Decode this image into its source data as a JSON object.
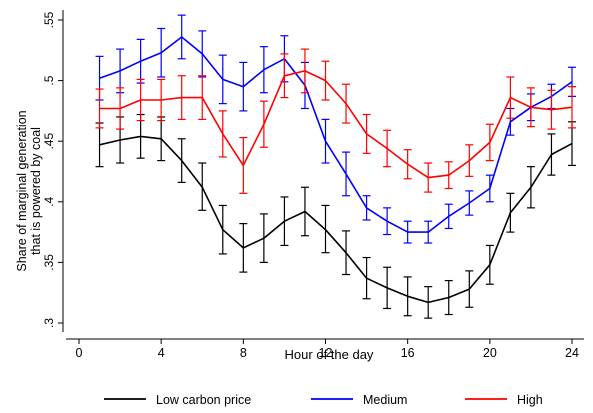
{
  "chart_data": {
    "type": "line",
    "title": "",
    "xlabel": "Hour of the day",
    "ylabel_lines": [
      "Share of marginal generation",
      "that is powered by coal"
    ],
    "xlim": [
      0,
      24.5
    ],
    "ylim": [
      0.3,
      0.555
    ],
    "x_ticks": [
      0,
      4,
      8,
      12,
      16,
      20,
      24
    ],
    "x_tick_labels": [
      "0",
      "4",
      "8",
      "12",
      "16",
      "20",
      "24"
    ],
    "y_ticks": [
      0.3,
      0.35,
      0.4,
      0.45,
      0.5,
      0.55
    ],
    "y_tick_labels": [
      ".3",
      ".35",
      ".4",
      ".45",
      ".5",
      ".55"
    ],
    "grid": false,
    "legend_position": "bottom",
    "x": [
      1,
      2,
      3,
      4,
      5,
      6,
      7,
      8,
      9,
      10,
      11,
      12,
      13,
      14,
      15,
      16,
      17,
      18,
      19,
      20,
      21,
      22,
      23,
      24
    ],
    "series": [
      {
        "name": "Low carbon price",
        "color": "#000000",
        "values": [
          0.447,
          0.451,
          0.454,
          0.452,
          0.434,
          0.412,
          0.377,
          0.362,
          0.37,
          0.384,
          0.392,
          0.377,
          0.358,
          0.337,
          0.329,
          0.322,
          0.317,
          0.321,
          0.328,
          0.348,
          0.391,
          0.412,
          0.439,
          0.448
        ],
        "ci_low": [
          0.429,
          0.432,
          0.436,
          0.434,
          0.416,
          0.393,
          0.357,
          0.342,
          0.35,
          0.364,
          0.372,
          0.358,
          0.34,
          0.32,
          0.312,
          0.306,
          0.304,
          0.307,
          0.313,
          0.332,
          0.375,
          0.395,
          0.422,
          0.43
        ],
        "ci_high": [
          0.465,
          0.47,
          0.472,
          0.47,
          0.452,
          0.432,
          0.397,
          0.382,
          0.39,
          0.404,
          0.412,
          0.397,
          0.376,
          0.354,
          0.346,
          0.338,
          0.33,
          0.335,
          0.343,
          0.364,
          0.407,
          0.429,
          0.456,
          0.466
        ]
      },
      {
        "name": "Medium",
        "color": "#0000ff",
        "values": [
          0.502,
          0.508,
          0.516,
          0.523,
          0.536,
          0.522,
          0.501,
          0.495,
          0.509,
          0.518,
          0.496,
          0.45,
          0.423,
          0.395,
          0.384,
          0.375,
          0.375,
          0.388,
          0.399,
          0.411,
          0.466,
          0.478,
          0.487,
          0.499
        ],
        "ci_low": [
          0.484,
          0.49,
          0.498,
          0.503,
          0.518,
          0.503,
          0.481,
          0.475,
          0.49,
          0.499,
          0.477,
          0.432,
          0.405,
          0.385,
          0.373,
          0.366,
          0.366,
          0.378,
          0.389,
          0.4,
          0.455,
          0.467,
          0.477,
          0.487
        ],
        "ci_high": [
          0.52,
          0.526,
          0.534,
          0.543,
          0.554,
          0.541,
          0.521,
          0.515,
          0.528,
          0.537,
          0.515,
          0.468,
          0.441,
          0.405,
          0.395,
          0.384,
          0.384,
          0.398,
          0.409,
          0.422,
          0.477,
          0.489,
          0.497,
          0.511
        ]
      },
      {
        "name": "High",
        "color": "#ff0000",
        "values": [
          0.477,
          0.477,
          0.484,
          0.484,
          0.486,
          0.486,
          0.456,
          0.43,
          0.464,
          0.504,
          0.508,
          0.5,
          0.481,
          0.456,
          0.444,
          0.431,
          0.42,
          0.422,
          0.434,
          0.449,
          0.486,
          0.478,
          0.476,
          0.478
        ],
        "ci_low": [
          0.461,
          0.46,
          0.467,
          0.467,
          0.468,
          0.468,
          0.437,
          0.407,
          0.445,
          0.486,
          0.49,
          0.484,
          0.465,
          0.44,
          0.429,
          0.419,
          0.408,
          0.411,
          0.421,
          0.434,
          0.469,
          0.462,
          0.46,
          0.461
        ],
        "ci_high": [
          0.493,
          0.494,
          0.501,
          0.501,
          0.504,
          0.504,
          0.475,
          0.453,
          0.483,
          0.522,
          0.526,
          0.516,
          0.497,
          0.472,
          0.459,
          0.443,
          0.432,
          0.433,
          0.447,
          0.464,
          0.503,
          0.494,
          0.492,
          0.495
        ]
      }
    ]
  }
}
